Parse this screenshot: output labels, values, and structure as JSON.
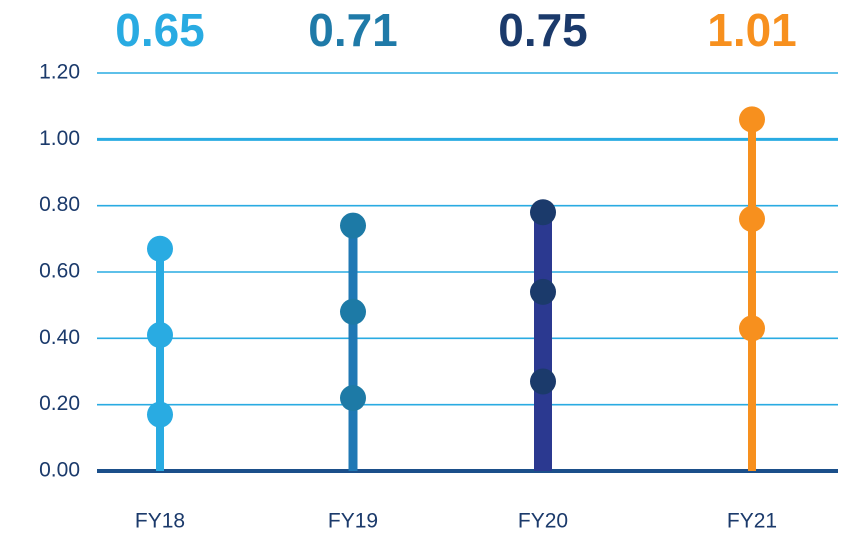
{
  "chart_data": {
    "type": "lollipop",
    "categories": [
      "FY18",
      "FY19",
      "FY20",
      "FY21"
    ],
    "totals": [
      0.65,
      0.71,
      0.75,
      1.01
    ],
    "points": [
      [
        0.17,
        0.41,
        0.67
      ],
      [
        0.22,
        0.48,
        0.74
      ],
      [
        0.27,
        0.54,
        0.78
      ],
      [
        0.43,
        0.76,
        1.06
      ]
    ],
    "colors": [
      "#29abe2",
      "#1f78b4",
      "#2b3990",
      "#f7901e"
    ],
    "dot_colors": [
      "#29abe2",
      "#1d7aa6",
      "#1b3a6b",
      "#f7901e"
    ],
    "label_colors": [
      "#29abe2",
      "#1f7aa8",
      "#1b3a6b",
      "#f7901e"
    ],
    "ylim": [
      0,
      1.2
    ],
    "yticks": [
      {
        "value": 0,
        "label": "0.00"
      },
      {
        "value": 0.2,
        "label": "0.20"
      },
      {
        "value": 0.4,
        "label": "0.40"
      },
      {
        "value": 0.6,
        "label": "0.60"
      },
      {
        "value": 0.8,
        "label": "0.80"
      },
      {
        "value": 1.0,
        "label": "1.00"
      },
      {
        "value": 1.2,
        "label": "1.20"
      }
    ],
    "grid": true
  }
}
